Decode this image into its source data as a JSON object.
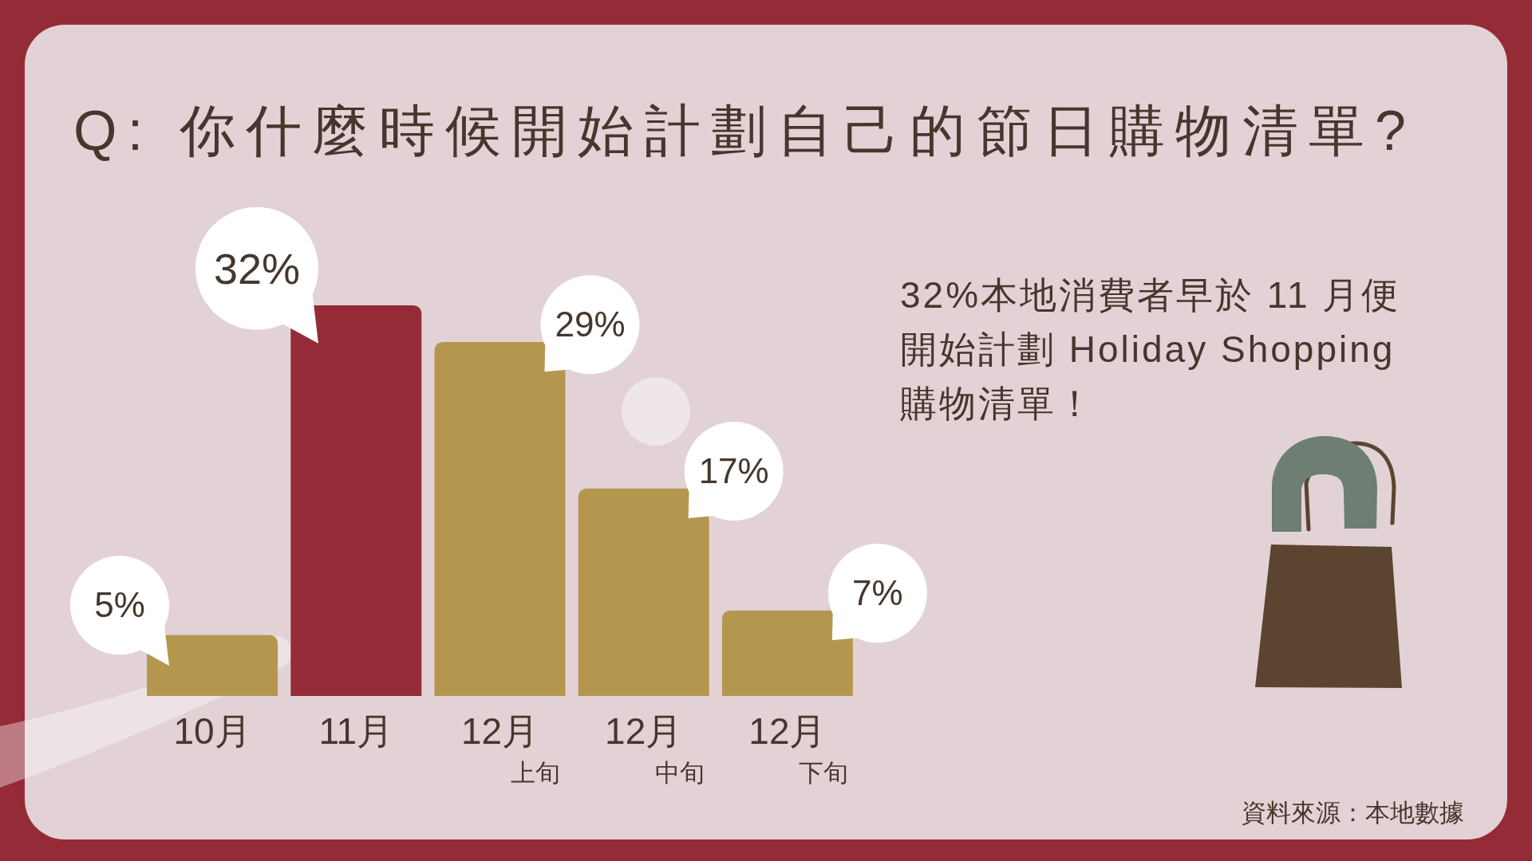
{
  "chart_data": {
    "type": "bar",
    "title": "Q: 你什麼時候開始計劃自己的節日購物清單?",
    "categories": [
      "10月",
      "11月",
      "12月上旬",
      "12月中旬",
      "12月下旬"
    ],
    "values": [
      5,
      32,
      29,
      17,
      7
    ],
    "colors": [
      "#b5964f",
      "#942b36",
      "#b5964f",
      "#b5964f",
      "#b5964f"
    ],
    "value_labels": [
      "5%",
      "32%",
      "29%",
      "17%",
      "7%"
    ],
    "annotations": [
      "32%本地消費者早於 11 月便開始計劃 Holiday Shopping 購物清單！",
      "資料來源：本地數據"
    ]
  }
}
